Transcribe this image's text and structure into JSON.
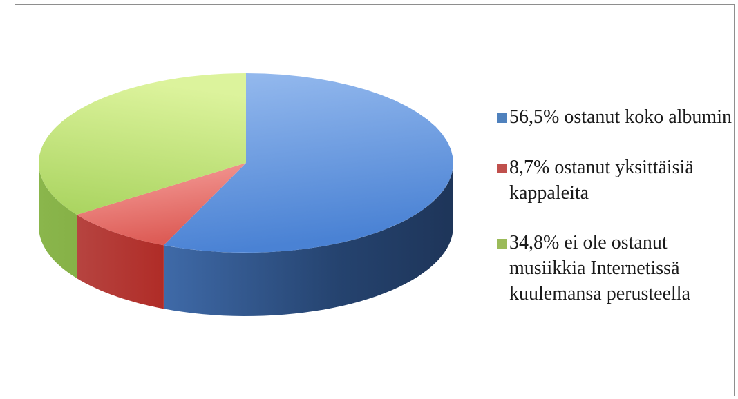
{
  "chart_data": {
    "type": "pie",
    "title": "",
    "series": [
      {
        "values": [
          56.5,
          8.7,
          34.8
        ],
        "labels": [
          "56,5% ostanut koko albumin",
          "8,7% ostanut yksittäisiä kappaleita",
          "34,8% ei ole ostanut musiikkia Internetissä kuulemansa perusteella"
        ],
        "colors": [
          "#4f81bd",
          "#c0504d",
          "#9bbb59"
        ]
      }
    ],
    "legend": {
      "position": "right",
      "items": [
        {
          "label": "56,5% ostanut koko albumin",
          "color": "#4f81bd"
        },
        {
          "label": "8,7% ostanut yksittäisiä kappaleita",
          "color": "#c0504d"
        },
        {
          "label": "34,8% ei ole ostanut musiikkia Internetissä kuulemansa perusteella",
          "color": "#9bbb59"
        }
      ]
    },
    "style": "3d-pie",
    "start_angle": "12 o'clock, clockwise"
  }
}
